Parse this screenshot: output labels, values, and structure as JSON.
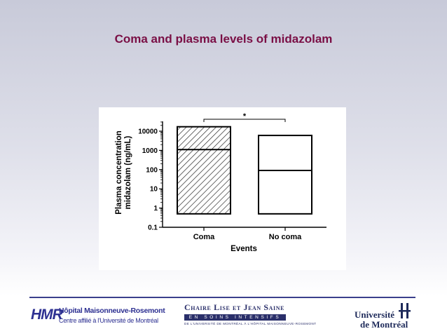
{
  "slide": {
    "title": "Coma and plasma levels of midazolam"
  },
  "chart_data": {
    "type": "box",
    "title": "",
    "xlabel": "Events",
    "ylabel_line1": "Plasma concentration",
    "ylabel_line2": "midazolam (ng/mL)",
    "yscale": "log",
    "ylim": [
      0.1,
      50000
    ],
    "yticks": [
      {
        "value": 0.1,
        "label": "0.1"
      },
      {
        "value": 1,
        "label": "1"
      },
      {
        "value": 10,
        "label": "10"
      },
      {
        "value": 100,
        "label": "100"
      },
      {
        "value": 1000,
        "label": "1000"
      },
      {
        "value": 10000,
        "label": "10000"
      }
    ],
    "categories": [
      "Coma",
      "No coma"
    ],
    "series": [
      {
        "name": "Coma",
        "min": 0.5,
        "median": 1100,
        "max": 17000,
        "fill": "hatched"
      },
      {
        "name": "No coma",
        "min": 0.5,
        "median": 90,
        "max": 6000,
        "fill": "white"
      }
    ],
    "significance": {
      "between": [
        "Coma",
        "No coma"
      ],
      "label": "*"
    }
  },
  "footer": {
    "hmr": {
      "mark": "HMR",
      "name": "Hôpital Maisonneuve-Rosemont",
      "subtitle": "Centre affilié à l'Université de Montréal"
    },
    "chaire": {
      "name": "Chaire Lise et Jean Saine",
      "band": "EN SOINS INTENSIFS",
      "small": "DE L'UNIVERSITÉ DE MONTRÉAL À L'HÔPITAL MAISONNEUVE-ROSEMONT"
    },
    "udem": {
      "line1": "Université",
      "line2": "de Montréal"
    }
  }
}
